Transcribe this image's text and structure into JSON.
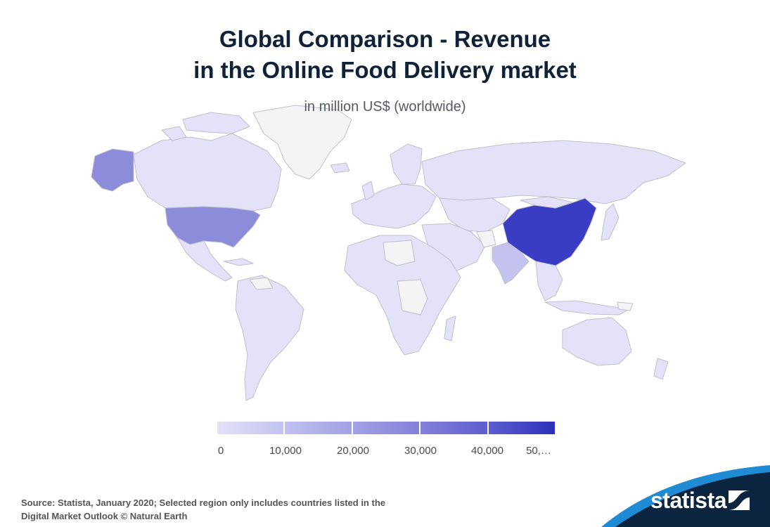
{
  "title_line1": "Global Comparison - Revenue",
  "title_line2": "in the Online Food Delivery market",
  "subtitle": "in million US$ (worldwide)",
  "legend": {
    "ticks": [
      "0",
      "10,000",
      "20,000",
      "30,000",
      "40,000",
      "50,…"
    ],
    "values": [
      0,
      10000,
      20000,
      30000,
      40000,
      50000
    ],
    "colors": [
      "#e3e2f8",
      "#c2c1ef",
      "#a2a1e3",
      "#8381d9",
      "#5e5dd0",
      "#2c30b9"
    ]
  },
  "map": {
    "no_data_color": "#f4f4f4",
    "highlighted_regions": [
      {
        "region": "China",
        "color": "#3a3cc4",
        "level_million_usd": 45000
      },
      {
        "region": "United States",
        "color": "#8d8cdb",
        "level_million_usd": 25000
      },
      {
        "region": "Alaska",
        "color": "#8d8cdb",
        "level_million_usd": 25000
      },
      {
        "region": "India",
        "color": "#c4c3ef",
        "level_million_usd": 6000
      }
    ],
    "default_color": "#e3e2f8"
  },
  "source_line1": "Source: Statista, January 2020; Selected region only includes countries listed in the",
  "source_line2": "Digital Market Outlook © Natural Earth",
  "brand": {
    "name": "statista",
    "background": "#0b2540",
    "accent": "#1f8bd4"
  }
}
